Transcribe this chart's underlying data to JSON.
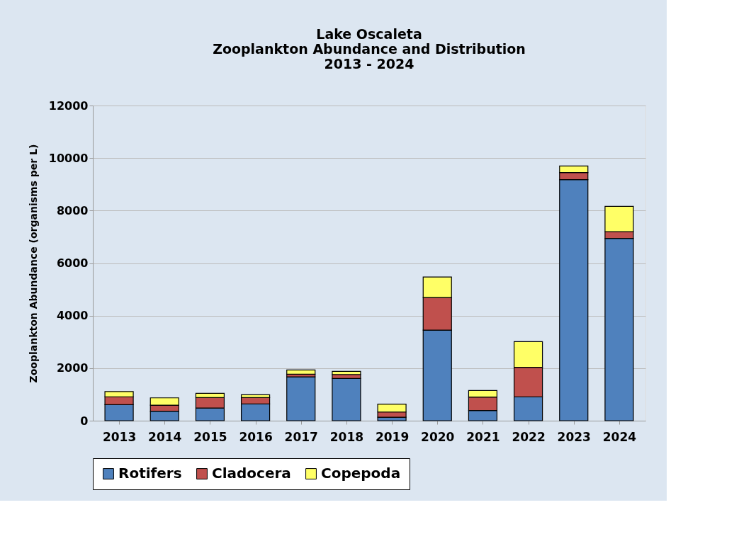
{
  "chart_data": {
    "type": "bar",
    "title": [
      "Lake Oscaleta",
      "Zooplankton Abundance and Distribution",
      "2013 - 2024"
    ],
    "ylabel": "Zooplankton Abundance (organisms per L)",
    "categories": [
      "2013",
      "2014",
      "2015",
      "2016",
      "2017",
      "2018",
      "2019",
      "2020",
      "2021",
      "2022",
      "2023",
      "2024"
    ],
    "stacked": true,
    "series": [
      {
        "name": "Rotifers",
        "color": "#4f81bd",
        "values": [
          610,
          360,
          480,
          640,
          1670,
          1610,
          130,
          3450,
          390,
          910,
          9180,
          6940
        ]
      },
      {
        "name": "Cladocera",
        "color": "#c0504d",
        "values": [
          300,
          230,
          400,
          240,
          100,
          150,
          200,
          1240,
          510,
          1120,
          270,
          260
        ]
      },
      {
        "name": "Copepoda",
        "color": "#ffff66",
        "values": [
          200,
          280,
          160,
          110,
          160,
          120,
          300,
          780,
          250,
          980,
          250,
          960
        ]
      }
    ],
    "ylim": [
      0,
      12000
    ],
    "yticks": [
      0,
      2000,
      4000,
      6000,
      8000,
      10000,
      12000
    ],
    "grid": "y",
    "legend": "bottom"
  }
}
